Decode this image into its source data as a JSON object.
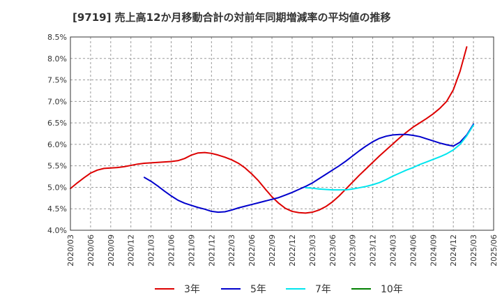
{
  "chart_data": {
    "type": "line",
    "title": "[9719]  売上高12か月移動合計の対前年同期増減率の平均値の推移",
    "xlabel": "",
    "ylabel": "",
    "ylim": [
      4.0,
      8.5
    ],
    "yticks": [
      "8.5%",
      "8.0%",
      "7.5%",
      "7.0%",
      "6.5%",
      "6.0%",
      "5.5%",
      "5.0%",
      "4.5%",
      "4.0%"
    ],
    "xlim": [
      "2020-03",
      "2025-06"
    ],
    "xticks": [
      "2020/03",
      "2020/06",
      "2020/09",
      "2020/12",
      "2021/03",
      "2021/06",
      "2021/09",
      "2021/12",
      "2022/03",
      "2022/06",
      "2022/09",
      "2022/12",
      "2023/03",
      "2023/06",
      "2023/09",
      "2023/12",
      "2024/03",
      "2024/06",
      "2024/09",
      "2024/12",
      "2025/03",
      "2025/06"
    ],
    "grid": true,
    "legend_position": "bottom",
    "series": [
      {
        "name": "3年",
        "color": "#dd0000",
        "points": [
          [
            "2020-03",
            4.97
          ],
          [
            "2020-04",
            5.1
          ],
          [
            "2020-05",
            5.22
          ],
          [
            "2020-06",
            5.33
          ],
          [
            "2020-07",
            5.4
          ],
          [
            "2020-08",
            5.44
          ],
          [
            "2020-09",
            5.45
          ],
          [
            "2020-10",
            5.46
          ],
          [
            "2020-11",
            5.48
          ],
          [
            "2020-12",
            5.51
          ],
          [
            "2021-01",
            5.54
          ],
          [
            "2021-02",
            5.56
          ],
          [
            "2021-03",
            5.57
          ],
          [
            "2021-04",
            5.58
          ],
          [
            "2021-05",
            5.59
          ],
          [
            "2021-06",
            5.6
          ],
          [
            "2021-07",
            5.62
          ],
          [
            "2021-08",
            5.67
          ],
          [
            "2021-09",
            5.75
          ],
          [
            "2021-10",
            5.8
          ],
          [
            "2021-11",
            5.81
          ],
          [
            "2021-12",
            5.79
          ],
          [
            "2022-01",
            5.75
          ],
          [
            "2022-02",
            5.7
          ],
          [
            "2022-03",
            5.64
          ],
          [
            "2022-04",
            5.56
          ],
          [
            "2022-05",
            5.45
          ],
          [
            "2022-06",
            5.31
          ],
          [
            "2022-07",
            5.15
          ],
          [
            "2022-08",
            4.96
          ],
          [
            "2022-09",
            4.78
          ],
          [
            "2022-10",
            4.63
          ],
          [
            "2022-11",
            4.51
          ],
          [
            "2022-12",
            4.44
          ],
          [
            "2023-01",
            4.41
          ],
          [
            "2023-02",
            4.4
          ],
          [
            "2023-03",
            4.42
          ],
          [
            "2023-04",
            4.47
          ],
          [
            "2023-05",
            4.55
          ],
          [
            "2023-06",
            4.66
          ],
          [
            "2023-07",
            4.8
          ],
          [
            "2023-08",
            4.96
          ],
          [
            "2023-09",
            5.12
          ],
          [
            "2023-10",
            5.28
          ],
          [
            "2023-11",
            5.43
          ],
          [
            "2023-12",
            5.58
          ],
          [
            "2024-01",
            5.73
          ],
          [
            "2024-02",
            5.87
          ],
          [
            "2024-03",
            6.01
          ],
          [
            "2024-04",
            6.15
          ],
          [
            "2024-05",
            6.28
          ],
          [
            "2024-06",
            6.4
          ],
          [
            "2024-07",
            6.5
          ],
          [
            "2024-08",
            6.6
          ],
          [
            "2024-09",
            6.71
          ],
          [
            "2024-10",
            6.84
          ],
          [
            "2024-11",
            7.0
          ],
          [
            "2024-12",
            7.27
          ],
          [
            "2025-01",
            7.7
          ],
          [
            "2025-02",
            8.27
          ]
        ]
      },
      {
        "name": "5年",
        "color": "#0000cc",
        "points": [
          [
            "2021-02",
            5.23
          ],
          [
            "2021-03",
            5.14
          ],
          [
            "2021-04",
            5.03
          ],
          [
            "2021-05",
            4.91
          ],
          [
            "2021-06",
            4.8
          ],
          [
            "2021-07",
            4.7
          ],
          [
            "2021-08",
            4.63
          ],
          [
            "2021-09",
            4.58
          ],
          [
            "2021-10",
            4.53
          ],
          [
            "2021-11",
            4.49
          ],
          [
            "2021-12",
            4.44
          ],
          [
            "2022-01",
            4.42
          ],
          [
            "2022-02",
            4.43
          ],
          [
            "2022-03",
            4.47
          ],
          [
            "2022-04",
            4.52
          ],
          [
            "2022-05",
            4.56
          ],
          [
            "2022-06",
            4.6
          ],
          [
            "2022-07",
            4.64
          ],
          [
            "2022-08",
            4.68
          ],
          [
            "2022-09",
            4.72
          ],
          [
            "2022-10",
            4.76
          ],
          [
            "2022-11",
            4.82
          ],
          [
            "2022-12",
            4.88
          ],
          [
            "2023-01",
            4.95
          ],
          [
            "2023-02",
            5.02
          ],
          [
            "2023-03",
            5.1
          ],
          [
            "2023-04",
            5.2
          ],
          [
            "2023-05",
            5.3
          ],
          [
            "2023-06",
            5.4
          ],
          [
            "2023-07",
            5.5
          ],
          [
            "2023-08",
            5.61
          ],
          [
            "2023-09",
            5.73
          ],
          [
            "2023-10",
            5.85
          ],
          [
            "2023-11",
            5.96
          ],
          [
            "2023-12",
            6.06
          ],
          [
            "2024-01",
            6.14
          ],
          [
            "2024-02",
            6.19
          ],
          [
            "2024-03",
            6.22
          ],
          [
            "2024-04",
            6.23
          ],
          [
            "2024-05",
            6.23
          ],
          [
            "2024-06",
            6.21
          ],
          [
            "2024-07",
            6.18
          ],
          [
            "2024-08",
            6.13
          ],
          [
            "2024-09",
            6.08
          ],
          [
            "2024-10",
            6.03
          ],
          [
            "2024-11",
            5.99
          ],
          [
            "2024-12",
            5.96
          ],
          [
            "2025-01",
            6.05
          ],
          [
            "2025-02",
            6.22
          ],
          [
            "2025-03",
            6.47
          ]
        ]
      },
      {
        "name": "7年",
        "color": "#00e5ee",
        "points": [
          [
            "2023-02",
            4.99
          ],
          [
            "2023-03",
            4.98
          ],
          [
            "2023-04",
            4.96
          ],
          [
            "2023-05",
            4.95
          ],
          [
            "2023-06",
            4.94
          ],
          [
            "2023-07",
            4.94
          ],
          [
            "2023-08",
            4.94
          ],
          [
            "2023-09",
            4.96
          ],
          [
            "2023-10",
            4.99
          ],
          [
            "2023-11",
            5.02
          ],
          [
            "2023-12",
            5.06
          ],
          [
            "2024-01",
            5.11
          ],
          [
            "2024-02",
            5.18
          ],
          [
            "2024-03",
            5.26
          ],
          [
            "2024-04",
            5.33
          ],
          [
            "2024-05",
            5.4
          ],
          [
            "2024-06",
            5.46
          ],
          [
            "2024-07",
            5.53
          ],
          [
            "2024-08",
            5.59
          ],
          [
            "2024-09",
            5.65
          ],
          [
            "2024-10",
            5.71
          ],
          [
            "2024-11",
            5.78
          ],
          [
            "2024-12",
            5.87
          ],
          [
            "2025-01",
            6.0
          ],
          [
            "2025-02",
            6.2
          ],
          [
            "2025-03",
            6.45
          ]
        ]
      },
      {
        "name": "10年",
        "color": "#008000",
        "points": []
      }
    ]
  }
}
